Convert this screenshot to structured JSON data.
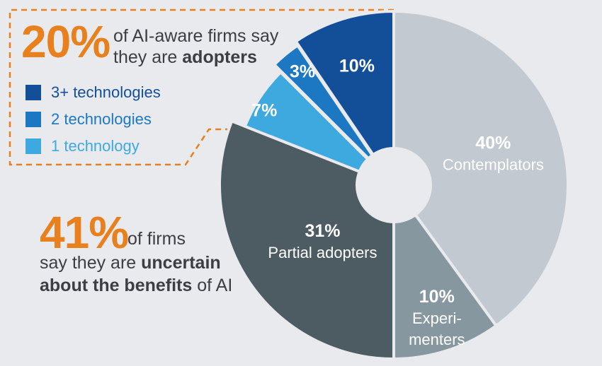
{
  "chart_data": {
    "type": "pie",
    "style": "donut",
    "slices": [
      {
        "name": "Contemplators",
        "pct_label": "40%",
        "value": 40,
        "color": "#c3c9d0",
        "label_lines": [
          "Contemplators"
        ]
      },
      {
        "name": "Experimenters",
        "pct_label": "10%",
        "value": 10,
        "color": "#87979f",
        "label_lines": [
          "Experi-",
          "menters"
        ]
      },
      {
        "name": "Partial adopters",
        "pct_label": "31%",
        "value": 31,
        "color": "#4d5b62",
        "label_lines": [
          "Partial adopters"
        ]
      },
      {
        "name": "1 technology",
        "pct_label": "7%",
        "value": 6.5,
        "color": "#3ea9de",
        "label_lines": []
      },
      {
        "name": "2 technologies",
        "pct_label": "3%",
        "value": 3,
        "color": "#1c78c2",
        "label_lines": []
      },
      {
        "name": "3+ technologies",
        "pct_label": "10%",
        "value": 9.5,
        "color": "#134f98",
        "label_lines": []
      }
    ],
    "legend": [
      {
        "label": "3+ technologies",
        "color": "#134f98"
      },
      {
        "label": "2 technologies",
        "color": "#1c78c2"
      },
      {
        "label": "1 technology",
        "color": "#3ea9de"
      }
    ],
    "legend_placement": "top-left"
  },
  "adopters_note": {
    "pct": "20%",
    "line1": "of AI-aware firms say",
    "line2_pre": "they are ",
    "line2_bold": "adopters"
  },
  "uncertain_note": {
    "pct": "41%",
    "line1": "of firms",
    "line2_pre": "say they are ",
    "line2_bold": "uncertain",
    "line3_bold": "about the benefits",
    "line3_post": " of AI"
  },
  "colors": {
    "accent_orange": "#e8801d",
    "background": "#e8eaed"
  }
}
